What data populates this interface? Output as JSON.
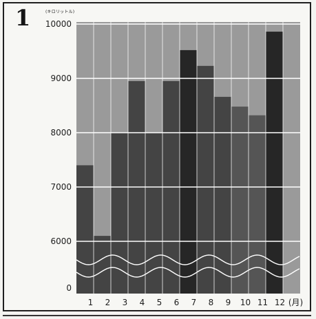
{
  "figure": {
    "number": "1",
    "unit": "(キロリットル)"
  },
  "chart_data": {
    "type": "bar",
    "categories": [
      "1",
      "2",
      "3",
      "4",
      "5",
      "6",
      "7",
      "8",
      "9",
      "10",
      "11",
      "12"
    ],
    "x_unit": "(月)",
    "values": [
      7400,
      6100,
      8000,
      8950,
      8000,
      8950,
      9520,
      9230,
      8660,
      8480,
      8320,
      9860
    ],
    "ylim": [
      6000,
      10000
    ],
    "y_ticks": [
      "0",
      "6000",
      "7000",
      "8000",
      "9000",
      "10000"
    ],
    "y_axis_break": true,
    "grid": true,
    "legend": "none",
    "colors": {
      "background": "#9a9a9a",
      "bar_default": "#444444",
      "bar_dark": "#262626",
      "bar_light": "#555555",
      "grid": "#ffffff"
    }
  }
}
